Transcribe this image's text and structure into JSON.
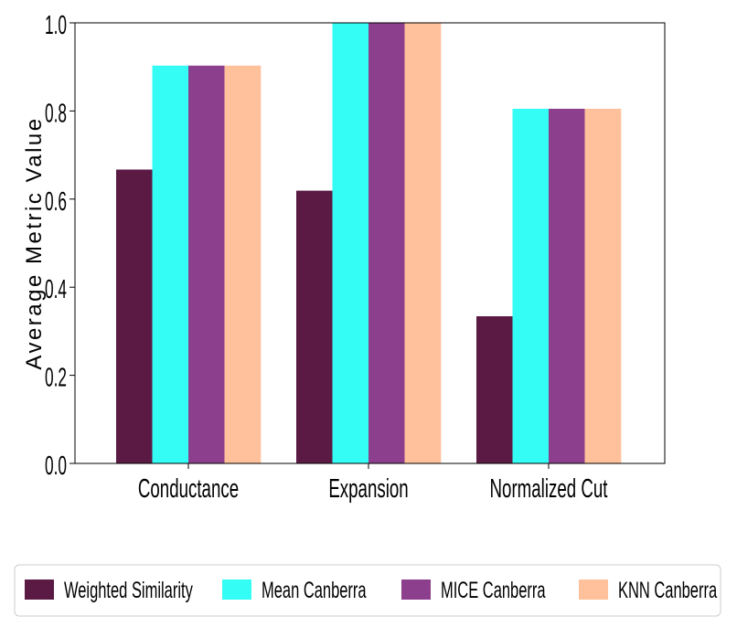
{
  "chart_data": {
    "type": "bar",
    "title": "",
    "xlabel": "",
    "ylabel": "Average Metric Value",
    "ylim": [
      0,
      1.0
    ],
    "yticks": [
      "0.0",
      "0.2",
      "0.4",
      "0.6",
      "0.8",
      "1.0"
    ],
    "ytick_values": [
      0,
      0.2,
      0.4,
      0.6,
      0.8,
      1.0
    ],
    "categories": [
      "Conductance",
      "Expansion",
      "Normalized Cut"
    ],
    "series": [
      {
        "name": "Weighted Similarity",
        "color": "#5a1a44",
        "values": [
          0.667,
          0.619,
          0.334
        ]
      },
      {
        "name": "Mean Canberra",
        "color": "#33fdf5",
        "values": [
          0.903,
          1.0,
          0.805
        ]
      },
      {
        "name": "MICE Canberra",
        "color": "#8c3f8c",
        "values": [
          0.903,
          1.0,
          0.805
        ]
      },
      {
        "name": "KNN Canberra",
        "color": "#ffc19b",
        "values": [
          0.903,
          1.0,
          0.805
        ]
      }
    ],
    "grid": false,
    "legend_position": "bottom"
  }
}
